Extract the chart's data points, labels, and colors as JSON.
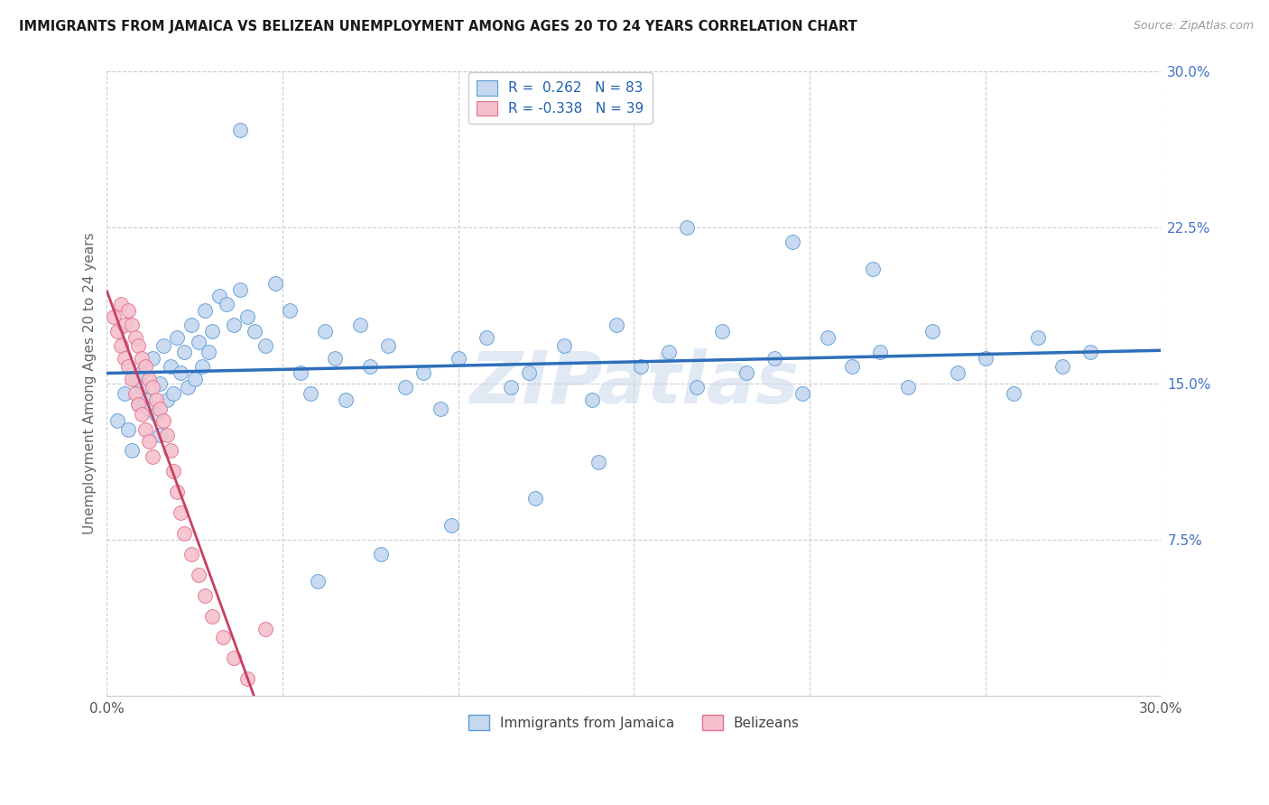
{
  "title": "IMMIGRANTS FROM JAMAICA VS BELIZEAN UNEMPLOYMENT AMONG AGES 20 TO 24 YEARS CORRELATION CHART",
  "source": "Source: ZipAtlas.com",
  "ylabel": "Unemployment Among Ages 20 to 24 years",
  "xlim": [
    0.0,
    0.3
  ],
  "ylim": [
    0.0,
    0.3
  ],
  "legend1_label": "Immigrants from Jamaica",
  "legend2_label": "Belizeans",
  "R1": 0.262,
  "N1": 83,
  "R2": -0.338,
  "N2": 39,
  "blue_face_color": "#c5d8f0",
  "blue_edge_color": "#5b9bd5",
  "pink_face_color": "#f5c0cc",
  "pink_edge_color": "#e07090",
  "blue_line_color": "#2e6fba",
  "pink_line_color": "#c84060",
  "dash_line_color": "#cccccc",
  "watermark_color": "#c8d8ec",
  "blue_x": [
    0.003,
    0.005,
    0.006,
    0.007,
    0.008,
    0.009,
    0.01,
    0.01,
    0.011,
    0.012,
    0.013,
    0.014,
    0.015,
    0.015,
    0.016,
    0.017,
    0.018,
    0.019,
    0.02,
    0.021,
    0.022,
    0.023,
    0.024,
    0.025,
    0.026,
    0.027,
    0.028,
    0.029,
    0.03,
    0.032,
    0.034,
    0.036,
    0.038,
    0.04,
    0.042,
    0.045,
    0.048,
    0.052,
    0.055,
    0.058,
    0.062,
    0.065,
    0.068,
    0.072,
    0.075,
    0.08,
    0.085,
    0.09,
    0.095,
    0.1,
    0.108,
    0.115,
    0.12,
    0.13,
    0.138,
    0.145,
    0.152,
    0.16,
    0.168,
    0.175,
    0.182,
    0.19,
    0.198,
    0.205,
    0.212,
    0.22,
    0.228,
    0.235,
    0.242,
    0.25,
    0.258,
    0.265,
    0.272,
    0.28,
    0.218,
    0.195,
    0.165,
    0.14,
    0.122,
    0.098,
    0.078,
    0.06,
    0.038
  ],
  "blue_y": [
    0.132,
    0.145,
    0.128,
    0.118,
    0.152,
    0.14,
    0.155,
    0.148,
    0.142,
    0.138,
    0.162,
    0.135,
    0.15,
    0.125,
    0.168,
    0.142,
    0.158,
    0.145,
    0.172,
    0.155,
    0.165,
    0.148,
    0.178,
    0.152,
    0.17,
    0.158,
    0.185,
    0.165,
    0.175,
    0.192,
    0.188,
    0.178,
    0.195,
    0.182,
    0.175,
    0.168,
    0.198,
    0.185,
    0.155,
    0.145,
    0.175,
    0.162,
    0.142,
    0.178,
    0.158,
    0.168,
    0.148,
    0.155,
    0.138,
    0.162,
    0.172,
    0.148,
    0.155,
    0.168,
    0.142,
    0.178,
    0.158,
    0.165,
    0.148,
    0.175,
    0.155,
    0.162,
    0.145,
    0.172,
    0.158,
    0.165,
    0.148,
    0.175,
    0.155,
    0.162,
    0.145,
    0.172,
    0.158,
    0.165,
    0.205,
    0.218,
    0.225,
    0.112,
    0.095,
    0.082,
    0.068,
    0.055,
    0.272
  ],
  "pink_x": [
    0.002,
    0.003,
    0.004,
    0.004,
    0.005,
    0.005,
    0.006,
    0.006,
    0.007,
    0.007,
    0.008,
    0.008,
    0.009,
    0.009,
    0.01,
    0.01,
    0.011,
    0.011,
    0.012,
    0.012,
    0.013,
    0.013,
    0.014,
    0.015,
    0.016,
    0.017,
    0.018,
    0.019,
    0.02,
    0.021,
    0.022,
    0.024,
    0.026,
    0.028,
    0.03,
    0.033,
    0.036,
    0.04,
    0.045
  ],
  "pink_y": [
    0.182,
    0.175,
    0.188,
    0.168,
    0.178,
    0.162,
    0.185,
    0.158,
    0.178,
    0.152,
    0.172,
    0.145,
    0.168,
    0.14,
    0.162,
    0.135,
    0.158,
    0.128,
    0.152,
    0.122,
    0.148,
    0.115,
    0.142,
    0.138,
    0.132,
    0.125,
    0.118,
    0.108,
    0.098,
    0.088,
    0.078,
    0.068,
    0.058,
    0.048,
    0.038,
    0.028,
    0.018,
    0.008,
    0.032
  ]
}
